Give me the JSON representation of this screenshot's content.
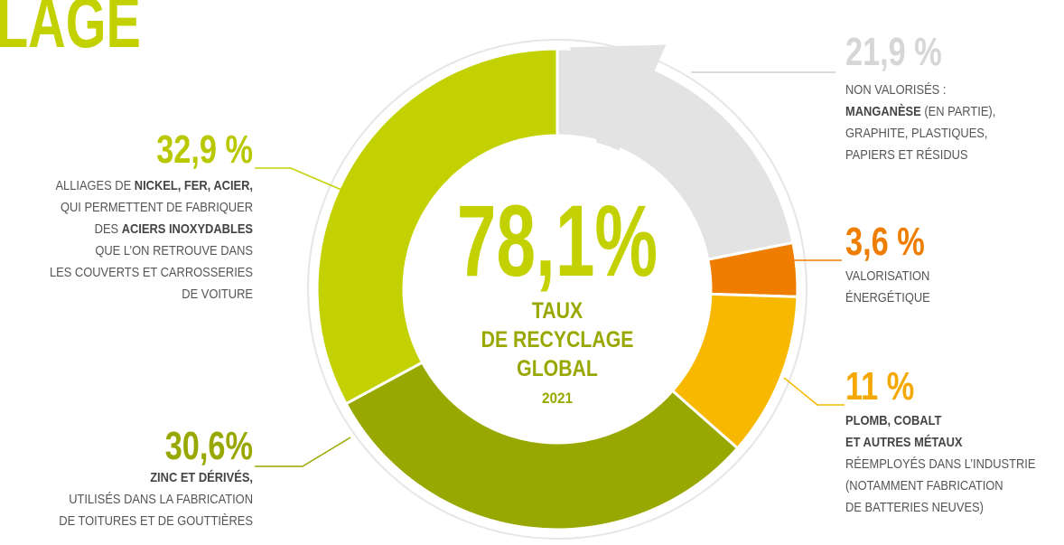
{
  "chart_data": {
    "type": "donut",
    "title": "LAGE",
    "center_label": "78,1%",
    "center_text": [
      "TAUX",
      "DE RECYCLAGE",
      "GLOBAL"
    ],
    "center_year": "2021",
    "series": [
      {
        "value": 21.9,
        "value_label": "21,9 %",
        "color": "#e3e3e3",
        "label_color": "#d6d6d6",
        "description": [
          [
            {
              "text": "NON VALORISÉS :"
            }
          ],
          [
            {
              "text": "MANGANÈSE",
              "bold": true
            },
            {
              "text": " (EN PARTIE),"
            }
          ],
          [
            {
              "text": "GRAPHITE, PLASTIQUES,"
            }
          ],
          [
            {
              "text": "PAPIERS ET RÉSIDUS"
            }
          ]
        ]
      },
      {
        "value": 3.6,
        "value_label": "3,6 %",
        "color": "#ee7d00",
        "label_color": "#ee7d00",
        "description": [
          [
            {
              "text": "VALORISATION"
            }
          ],
          [
            {
              "text": "ÉNERGÉTIQUE"
            }
          ]
        ]
      },
      {
        "value": 11,
        "value_label": "11 %",
        "color": "#f9b800",
        "label_color": "#f4a800",
        "description": [
          [
            {
              "text": "PLOMB, COBALT",
              "bold": true
            }
          ],
          [
            {
              "text": "ET AUTRES MÉTAUX",
              "bold": true
            }
          ],
          [
            {
              "text": "RÉEMPLOYÉS DANS L’INDUSTRIE"
            }
          ],
          [
            {
              "text": "(NOTAMMENT FABRICATION"
            }
          ],
          [
            {
              "text": "DE BATTERIES NEUVES)"
            }
          ]
        ]
      },
      {
        "value": 30.6,
        "value_label": "30,6%",
        "color": "#99a800",
        "label_color": "#99a800",
        "description": [
          [
            {
              "text": "ZINC ET DÉRIVÉS,",
              "bold": true
            }
          ],
          [
            {
              "text": "UTILISÉS DANS LA FABRICATION"
            }
          ],
          [
            {
              "text": "DE TOITURES ET DE GOUTTIÈRES"
            }
          ]
        ]
      },
      {
        "value": 32.9,
        "value_label": "32,9 %",
        "color": "#c4d100",
        "label_color": "#b9c800",
        "description": [
          [
            {
              "text": "ALLIAGES DE "
            },
            {
              "text": "NICKEL, FER, ACIER,",
              "bold": true
            }
          ],
          [
            {
              "text": "QUI PERMETTENT DE FABRIQUER"
            }
          ],
          [
            {
              "text": "DES "
            },
            {
              "text": "ACIERS INOXYDABLES",
              "bold": true
            }
          ],
          [
            {
              "text": "QUE L’ON RETROUVE DANS"
            }
          ],
          [
            {
              "text": "LES COUVERTS ET CARROSSERIES"
            }
          ],
          [
            {
              "text": "DE VOITURE"
            }
          ]
        ]
      }
    ]
  }
}
